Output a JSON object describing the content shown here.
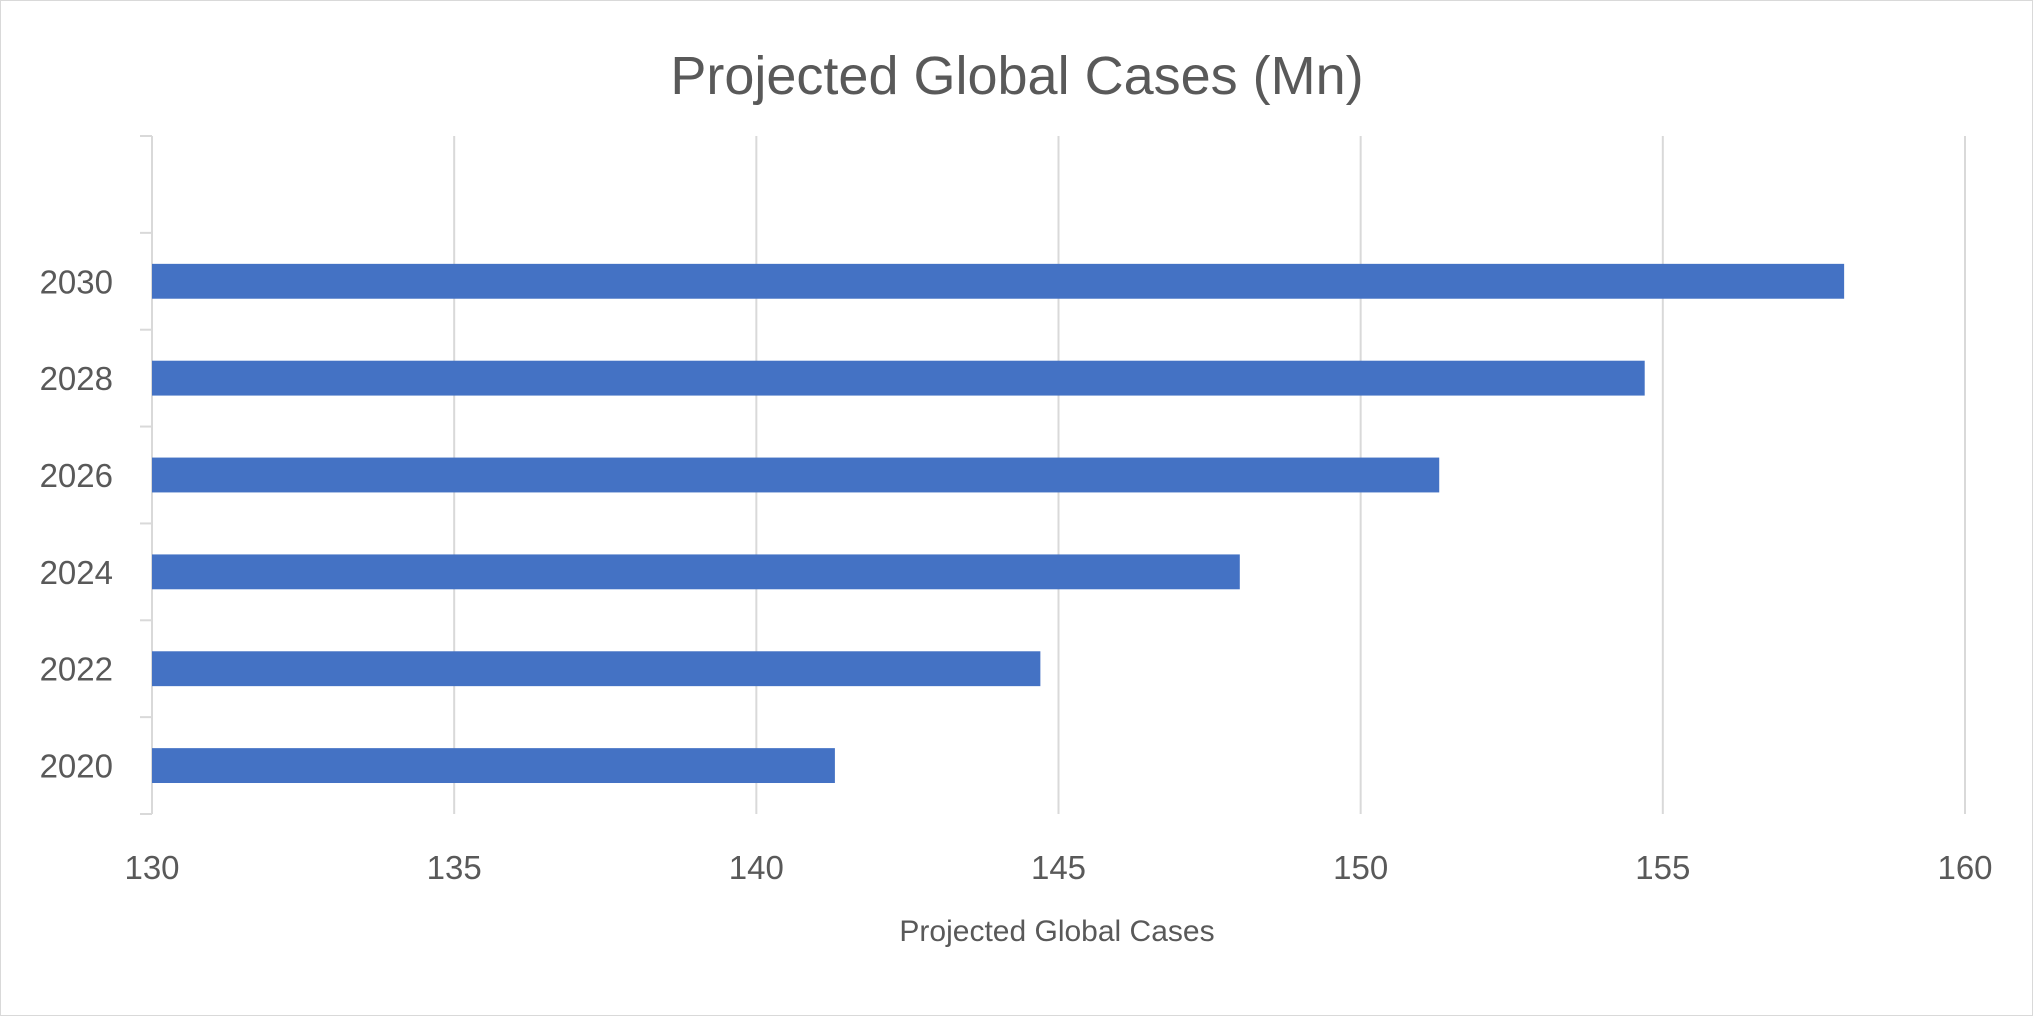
{
  "chart_data": {
    "type": "bar",
    "orientation": "horizontal",
    "title": "Projected Global Cases (Mn)",
    "xlabel": "Projected Global Cases",
    "ylabel": "",
    "categories": [
      "2020",
      "2022",
      "2024",
      "2026",
      "2028",
      "2030",
      ""
    ],
    "series": [
      {
        "values": [
          141.3,
          144.7,
          148.0,
          151.3,
          154.7,
          158.0,
          null
        ]
      }
    ],
    "xlim": [
      130,
      160
    ],
    "xticks": [
      130,
      135,
      140,
      145,
      150,
      155,
      160
    ],
    "grid": "vertical",
    "legend": "none",
    "bar_color": "#4472C4",
    "grid_color": "#D9D9D9",
    "text_color": "#595959"
  }
}
